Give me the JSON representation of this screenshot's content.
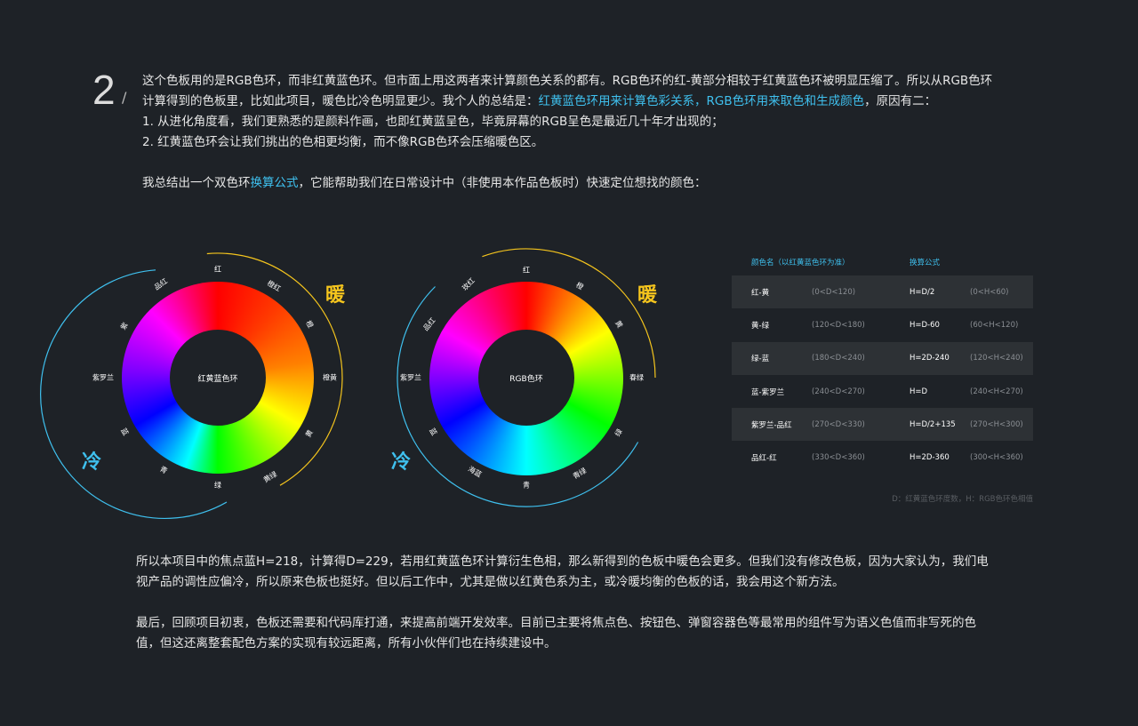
{
  "section_number": "2",
  "intro": {
    "line1": "这个色板用的是RGB色环，而非红黄蓝色环。但市面上用这两者来计算颜色关系的都有。RGB色环的红-黄部分相较于红黄蓝色环被明显压缩了。所以从RGB色环计算得到的色板里，比如此项目，暖色比冷色明显更少。我个人的总结是：",
    "highlight": "红黄蓝色环用来计算色彩关系，RGB色环用来取色和生成颜色",
    "line1_end": "，原因有二：",
    "point1": "1. 从进化角度看，我们更熟悉的是颜料作画，也即红黄蓝呈色，毕竟屏幕的RGB呈色是最近几十年才出现的；",
    "point2": "2. 红黄蓝色环会让我们挑出的色相更均衡，而不像RGB色环会压缩暖色区。",
    "summary_pre": "我总结出一个双色环",
    "summary_link": "换算公式",
    "summary_post": "，它能帮助我们在日常设计中（非使用本作品色板时）快速定位想找的颜色："
  },
  "warm_label": "暖",
  "cold_label": "冷",
  "colors": {
    "warm": "#f5c51d",
    "cold": "#3fc0ee",
    "bg": "#1e2227"
  },
  "ryb_wheel": {
    "title": "红黄蓝色环",
    "labels": [
      "红",
      "橙红",
      "橙",
      "橙黄",
      "黄",
      "黄绿",
      "绿",
      "青",
      "蓝",
      "紫罗兰",
      "紫",
      "品红"
    ]
  },
  "rgb_wheel": {
    "title": "RGB色环",
    "labels": [
      "红",
      "橙",
      "黄",
      "春绿",
      "绿",
      "青绿",
      "青",
      "海蓝",
      "蓝",
      "紫罗兰",
      "品红",
      "玫红"
    ]
  },
  "table": {
    "header_name": "颜色名（以红黄蓝色环为准）",
    "header_formula": "换算公式",
    "rows": [
      {
        "name": "红-黄",
        "d": "(0<D<120)",
        "formula": "H=D/2",
        "h": "(0<H<60)"
      },
      {
        "name": "黄-绿",
        "d": "(120<D<180)",
        "formula": "H=D-60",
        "h": "(60<H<120)"
      },
      {
        "name": "绿-蓝",
        "d": "(180<D<240)",
        "formula": "H=2D-240",
        "h": "(120<H<240)"
      },
      {
        "name": "蓝-紫罗兰",
        "d": "(240<D<270)",
        "formula": "H=D",
        "h": "(240<H<270)"
      },
      {
        "name": "紫罗兰-品红",
        "d": "(270<D<330)",
        "formula": "H=D/2+135",
        "h": "(270<H<300)"
      },
      {
        "name": "品红-红",
        "d": "(330<D<360)",
        "formula": "H=2D-360",
        "h": "(300<H<360)"
      }
    ],
    "note": "D：红黄蓝色环度数，H：RGB色环色相值"
  },
  "outro": {
    "p1": "所以本项目中的焦点蓝H=218，计算得D=229，若用红黄蓝色环计算衍生色相，那么新得到的色板中暖色会更多。但我们没有修改色板，因为大家认为，我们电视产品的调性应偏冷，所以原来色板也挺好。但以后工作中，尤其是做以红黄色系为主，或冷暖均衡的色板的话，我会用这个新方法。",
    "p2": "最后，回顾项目初衷，色板还需要和代码库打通，来提高前端开发效率。目前已主要将焦点色、按钮色、弹窗容器色等最常用的组件写为语义色值而非写死的色值，但这还离整套配色方案的实现有较远距离，所有小伙伴们也在持续建设中。"
  }
}
